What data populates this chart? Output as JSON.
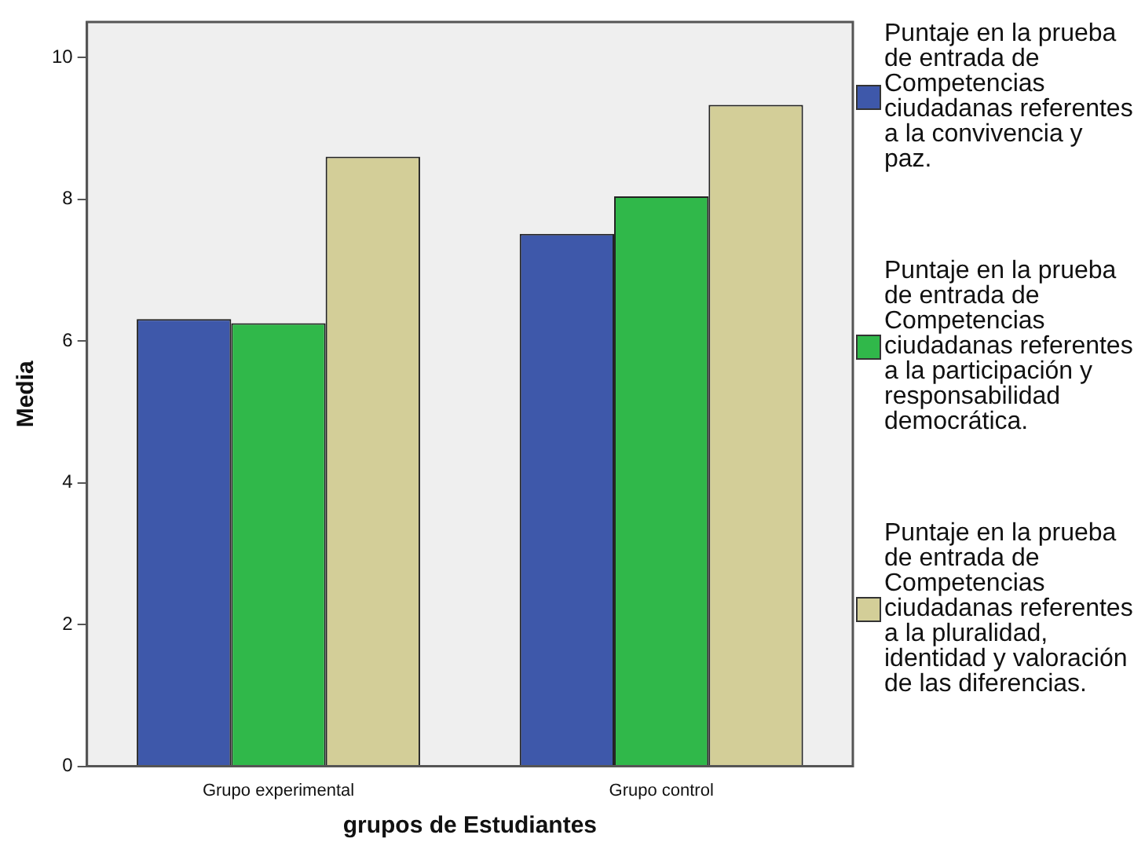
{
  "chart_data": {
    "type": "bar",
    "xlabel": "grupos de Estudiantes",
    "ylabel": "Media",
    "categories": [
      "Grupo experimental",
      "Grupo control"
    ],
    "series": [
      {
        "name": "Puntaje en la prueba de entrada de Competencias ciudadanas referentes a la convivencia y paz.",
        "color": "#3e58aa",
        "values": [
          6.31,
          7.51
        ]
      },
      {
        "name": "Puntaje en la prueba de entrada de Competencias ciudadanas referentes a la participación y responsabilidad democrática.",
        "color": "#30b84a",
        "values": [
          6.25,
          8.04
        ]
      },
      {
        "name": "Puntaje en la prueba de entrada de Competencias ciudadanas referentes a la pluralidad, identidad y valoración de las diferencias.",
        "color": "#d3ce98",
        "values": [
          8.6,
          9.33
        ]
      }
    ],
    "ylim": [
      0,
      10.5
    ],
    "yticks": [
      0,
      2,
      4,
      6,
      8,
      10
    ],
    "grid": false,
    "legend": "right"
  }
}
